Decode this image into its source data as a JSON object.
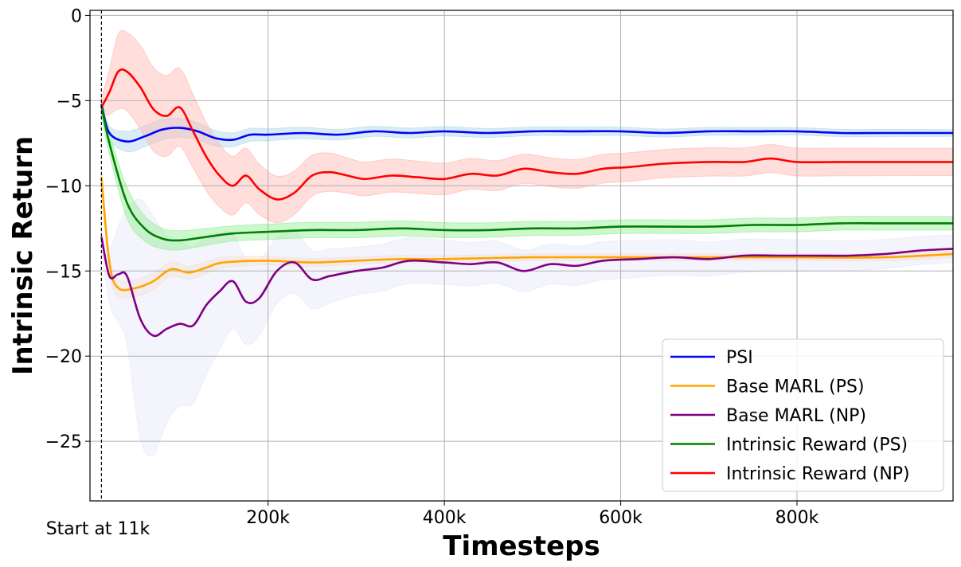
{
  "chart_data": {
    "type": "line",
    "xlabel": "Timesteps",
    "ylabel": "Intrinsic Return",
    "xlim": [
      -2000,
      977000
    ],
    "ylim": [
      -28.5,
      0.3
    ],
    "x_ticks": [
      200000,
      400000,
      600000,
      800000
    ],
    "x_tick_labels": [
      "200k",
      "400k",
      "600k",
      "800k"
    ],
    "y_ticks": [
      0,
      -5,
      -10,
      -15,
      -20,
      -25
    ],
    "y_tick_labels": [
      "0",
      "−5",
      "−10",
      "−15",
      "−20",
      "−25"
    ],
    "grid": true,
    "legend_position": "bottom-right",
    "marker": {
      "x": 11000,
      "label": "Start at 11k",
      "style": "dashed"
    },
    "series": [
      {
        "name": "PSI",
        "color": "#0000ff",
        "band_color": "#add8e6",
        "points": [
          [
            11000,
            -5.2
          ],
          [
            20000,
            -6.9
          ],
          [
            40000,
            -7.4
          ],
          [
            60000,
            -7.1
          ],
          [
            80000,
            -6.7
          ],
          [
            100000,
            -6.6
          ],
          [
            120000,
            -6.8
          ],
          [
            140000,
            -7.2
          ],
          [
            160000,
            -7.3
          ],
          [
            180000,
            -7.0
          ],
          [
            200000,
            -7.0
          ],
          [
            240000,
            -6.9
          ],
          [
            280000,
            -7.0
          ],
          [
            320000,
            -6.8
          ],
          [
            360000,
            -6.9
          ],
          [
            400000,
            -6.8
          ],
          [
            450000,
            -6.9
          ],
          [
            500000,
            -6.8
          ],
          [
            550000,
            -6.8
          ],
          [
            600000,
            -6.8
          ],
          [
            650000,
            -6.9
          ],
          [
            700000,
            -6.8
          ],
          [
            750000,
            -6.8
          ],
          [
            800000,
            -6.8
          ],
          [
            850000,
            -6.9
          ],
          [
            900000,
            -6.9
          ],
          [
            977000,
            -6.9
          ]
        ],
        "band": [
          [
            11000,
            0.3
          ],
          [
            40000,
            0.6
          ],
          [
            80000,
            0.6
          ],
          [
            120000,
            0.5
          ],
          [
            160000,
            0.4
          ],
          [
            200000,
            0.35
          ],
          [
            300000,
            0.3
          ],
          [
            500000,
            0.25
          ],
          [
            977000,
            0.2
          ]
        ]
      },
      {
        "name": "Base MARL (PS)",
        "color": "#ffa500",
        "band_color": "#ffdab9",
        "points": [
          [
            11000,
            -9.5
          ],
          [
            20000,
            -14.5
          ],
          [
            30000,
            -16.0
          ],
          [
            50000,
            -16.0
          ],
          [
            70000,
            -15.6
          ],
          [
            90000,
            -14.9
          ],
          [
            110000,
            -15.1
          ],
          [
            130000,
            -14.8
          ],
          [
            150000,
            -14.5
          ],
          [
            200000,
            -14.4
          ],
          [
            250000,
            -14.5
          ],
          [
            300000,
            -14.4
          ],
          [
            350000,
            -14.3
          ],
          [
            400000,
            -14.3
          ],
          [
            500000,
            -14.2
          ],
          [
            600000,
            -14.2
          ],
          [
            700000,
            -14.2
          ],
          [
            800000,
            -14.2
          ],
          [
            900000,
            -14.2
          ],
          [
            977000,
            -14.0
          ]
        ],
        "band": [
          [
            11000,
            0.5
          ],
          [
            30000,
            0.5
          ],
          [
            60000,
            0.5
          ],
          [
            100000,
            0.4
          ],
          [
            200000,
            0.25
          ],
          [
            400000,
            0.2
          ],
          [
            977000,
            0.2
          ]
        ]
      },
      {
        "name": "Base MARL (NP)",
        "color": "#800080",
        "band_color": "#e6e6fa",
        "points": [
          [
            11000,
            -13.0
          ],
          [
            20000,
            -15.3
          ],
          [
            30000,
            -15.2
          ],
          [
            40000,
            -15.3
          ],
          [
            55000,
            -17.8
          ],
          [
            70000,
            -18.8
          ],
          [
            85000,
            -18.4
          ],
          [
            100000,
            -18.1
          ],
          [
            115000,
            -18.2
          ],
          [
            130000,
            -17.0
          ],
          [
            145000,
            -16.2
          ],
          [
            160000,
            -15.6
          ],
          [
            175000,
            -16.8
          ],
          [
            190000,
            -16.6
          ],
          [
            210000,
            -15.0
          ],
          [
            230000,
            -14.5
          ],
          [
            250000,
            -15.5
          ],
          [
            270000,
            -15.3
          ],
          [
            300000,
            -15.0
          ],
          [
            330000,
            -14.8
          ],
          [
            360000,
            -14.4
          ],
          [
            400000,
            -14.5
          ],
          [
            430000,
            -14.6
          ],
          [
            460000,
            -14.5
          ],
          [
            490000,
            -15.0
          ],
          [
            520000,
            -14.6
          ],
          [
            550000,
            -14.7
          ],
          [
            580000,
            -14.4
          ],
          [
            620000,
            -14.3
          ],
          [
            660000,
            -14.2
          ],
          [
            700000,
            -14.3
          ],
          [
            740000,
            -14.1
          ],
          [
            780000,
            -14.1
          ],
          [
            820000,
            -14.1
          ],
          [
            860000,
            -14.1
          ],
          [
            900000,
            -14.0
          ],
          [
            940000,
            -13.8
          ],
          [
            977000,
            -13.7
          ]
        ],
        "band": [
          [
            11000,
            0.5
          ],
          [
            40000,
            4.0
          ],
          [
            60000,
            8.0
          ],
          [
            90000,
            5.0
          ],
          [
            120000,
            4.5
          ],
          [
            160000,
            2.8
          ],
          [
            200000,
            2.0
          ],
          [
            300000,
            1.4
          ],
          [
            500000,
            1.2
          ],
          [
            700000,
            1.0
          ],
          [
            977000,
            0.8
          ]
        ]
      },
      {
        "name": "Intrinsic Reward (PS)",
        "color": "#008000",
        "band_color": "#90ee90",
        "points": [
          [
            11000,
            -5.3
          ],
          [
            20000,
            -7.5
          ],
          [
            40000,
            -11.0
          ],
          [
            60000,
            -12.5
          ],
          [
            80000,
            -13.1
          ],
          [
            100000,
            -13.2
          ],
          [
            130000,
            -13.0
          ],
          [
            160000,
            -12.8
          ],
          [
            200000,
            -12.7
          ],
          [
            250000,
            -12.6
          ],
          [
            300000,
            -12.6
          ],
          [
            350000,
            -12.5
          ],
          [
            400000,
            -12.6
          ],
          [
            450000,
            -12.6
          ],
          [
            500000,
            -12.5
          ],
          [
            550000,
            -12.5
          ],
          [
            600000,
            -12.4
          ],
          [
            650000,
            -12.4
          ],
          [
            700000,
            -12.4
          ],
          [
            750000,
            -12.3
          ],
          [
            800000,
            -12.3
          ],
          [
            850000,
            -12.2
          ],
          [
            900000,
            -12.2
          ],
          [
            977000,
            -12.2
          ]
        ],
        "band": [
          [
            11000,
            0.5
          ],
          [
            40000,
            0.9
          ],
          [
            80000,
            0.6
          ],
          [
            150000,
            0.45
          ],
          [
            300000,
            0.45
          ],
          [
            600000,
            0.4
          ],
          [
            977000,
            0.4
          ]
        ]
      },
      {
        "name": "Intrinsic Reward (NP)",
        "color": "#ff0000",
        "band_color": "#ffb6b0",
        "points": [
          [
            11000,
            -5.4
          ],
          [
            20000,
            -4.5
          ],
          [
            30000,
            -3.3
          ],
          [
            40000,
            -3.3
          ],
          [
            55000,
            -4.2
          ],
          [
            70000,
            -5.5
          ],
          [
            85000,
            -5.9
          ],
          [
            100000,
            -5.4
          ],
          [
            115000,
            -6.8
          ],
          [
            130000,
            -8.3
          ],
          [
            145000,
            -9.4
          ],
          [
            160000,
            -10.0
          ],
          [
            175000,
            -9.4
          ],
          [
            190000,
            -10.2
          ],
          [
            210000,
            -10.8
          ],
          [
            230000,
            -10.4
          ],
          [
            250000,
            -9.4
          ],
          [
            270000,
            -9.2
          ],
          [
            290000,
            -9.4
          ],
          [
            310000,
            -9.6
          ],
          [
            340000,
            -9.4
          ],
          [
            370000,
            -9.5
          ],
          [
            400000,
            -9.6
          ],
          [
            430000,
            -9.3
          ],
          [
            460000,
            -9.4
          ],
          [
            490000,
            -9.0
          ],
          [
            520000,
            -9.2
          ],
          [
            550000,
            -9.3
          ],
          [
            580000,
            -9.0
          ],
          [
            610000,
            -8.9
          ],
          [
            650000,
            -8.7
          ],
          [
            700000,
            -8.6
          ],
          [
            740000,
            -8.6
          ],
          [
            770000,
            -8.4
          ],
          [
            800000,
            -8.6
          ],
          [
            850000,
            -8.6
          ],
          [
            900000,
            -8.6
          ],
          [
            977000,
            -8.6
          ]
        ],
        "band": [
          [
            11000,
            0.5
          ],
          [
            30000,
            2.2
          ],
          [
            60000,
            2.5
          ],
          [
            100000,
            2.3
          ],
          [
            150000,
            1.8
          ],
          [
            200000,
            1.4
          ],
          [
            300000,
            1.0
          ],
          [
            500000,
            0.85
          ],
          [
            977000,
            0.8
          ]
        ]
      }
    ]
  }
}
